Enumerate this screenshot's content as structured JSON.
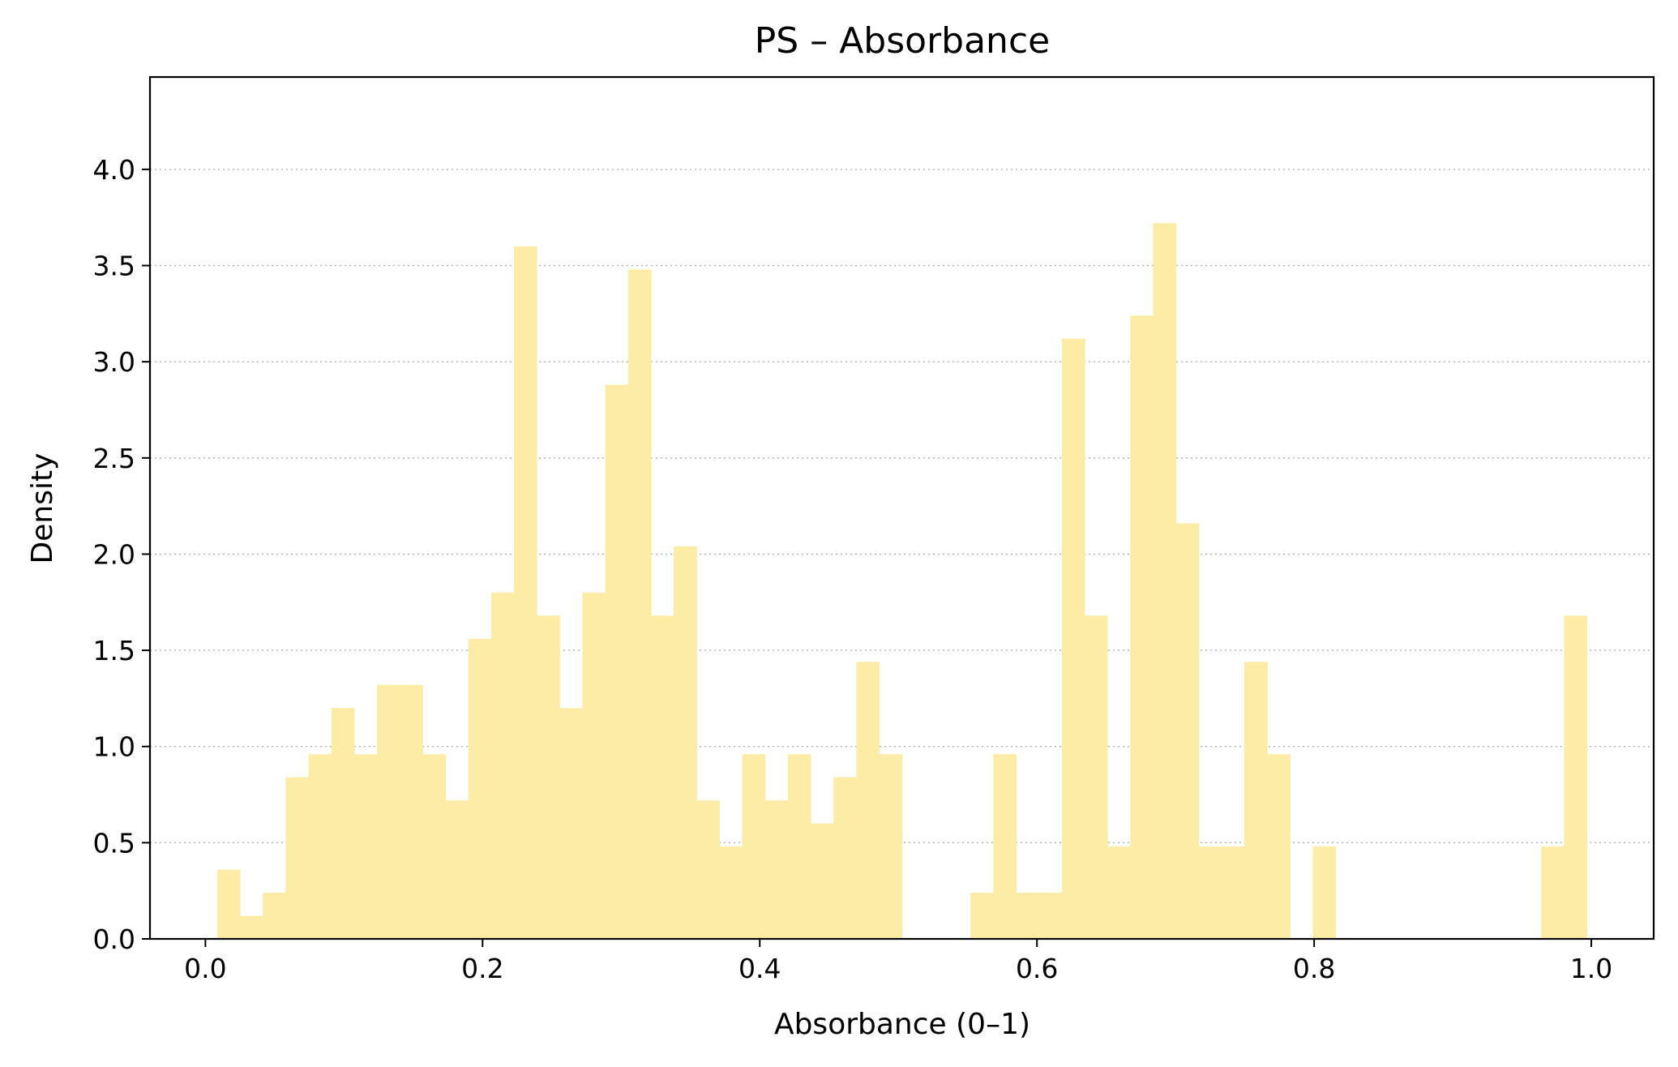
{
  "chart_data": {
    "type": "bar",
    "subtype": "histogram",
    "title": "PS – Absorbance",
    "xlabel": "Absorbance (0–1)",
    "ylabel": "Density",
    "xlim": [
      -0.04,
      1.045
    ],
    "ylim": [
      0,
      4.48
    ],
    "xticks": [
      0.0,
      0.2,
      0.4,
      0.6,
      0.8,
      1.0
    ],
    "xtick_labels": [
      "0.0",
      "0.2",
      "0.4",
      "0.6",
      "0.8",
      "1.0"
    ],
    "yticks": [
      0.0,
      0.5,
      1.0,
      1.5,
      2.0,
      2.5,
      3.0,
      3.5,
      4.0
    ],
    "ytick_labels": [
      "0.0",
      "0.5",
      "1.0",
      "1.5",
      "2.0",
      "2.5",
      "3.0",
      "3.5",
      "4.0"
    ],
    "grid": "y-dotted",
    "bar_color": "#fdeca6",
    "bin_start": 0.0085,
    "bin_width": 0.01647,
    "values": [
      0.36,
      0.12,
      0.24,
      0.84,
      0.96,
      1.2,
      0.96,
      1.32,
      1.32,
      0.96,
      0.72,
      1.56,
      1.8,
      3.6,
      1.68,
      1.2,
      1.8,
      2.88,
      3.48,
      1.68,
      2.04,
      0.72,
      0.48,
      0.96,
      0.72,
      0.96,
      0.6,
      0.84,
      1.44,
      0.96,
      0,
      0,
      0,
      0.24,
      0.96,
      0.24,
      0.24,
      3.12,
      1.68,
      0.48,
      3.24,
      3.72,
      2.16,
      0.48,
      0.48,
      1.44,
      0.96,
      0,
      0.48,
      0,
      0,
      0,
      0,
      0,
      0,
      0,
      0,
      0,
      0.48,
      1.68
    ]
  }
}
